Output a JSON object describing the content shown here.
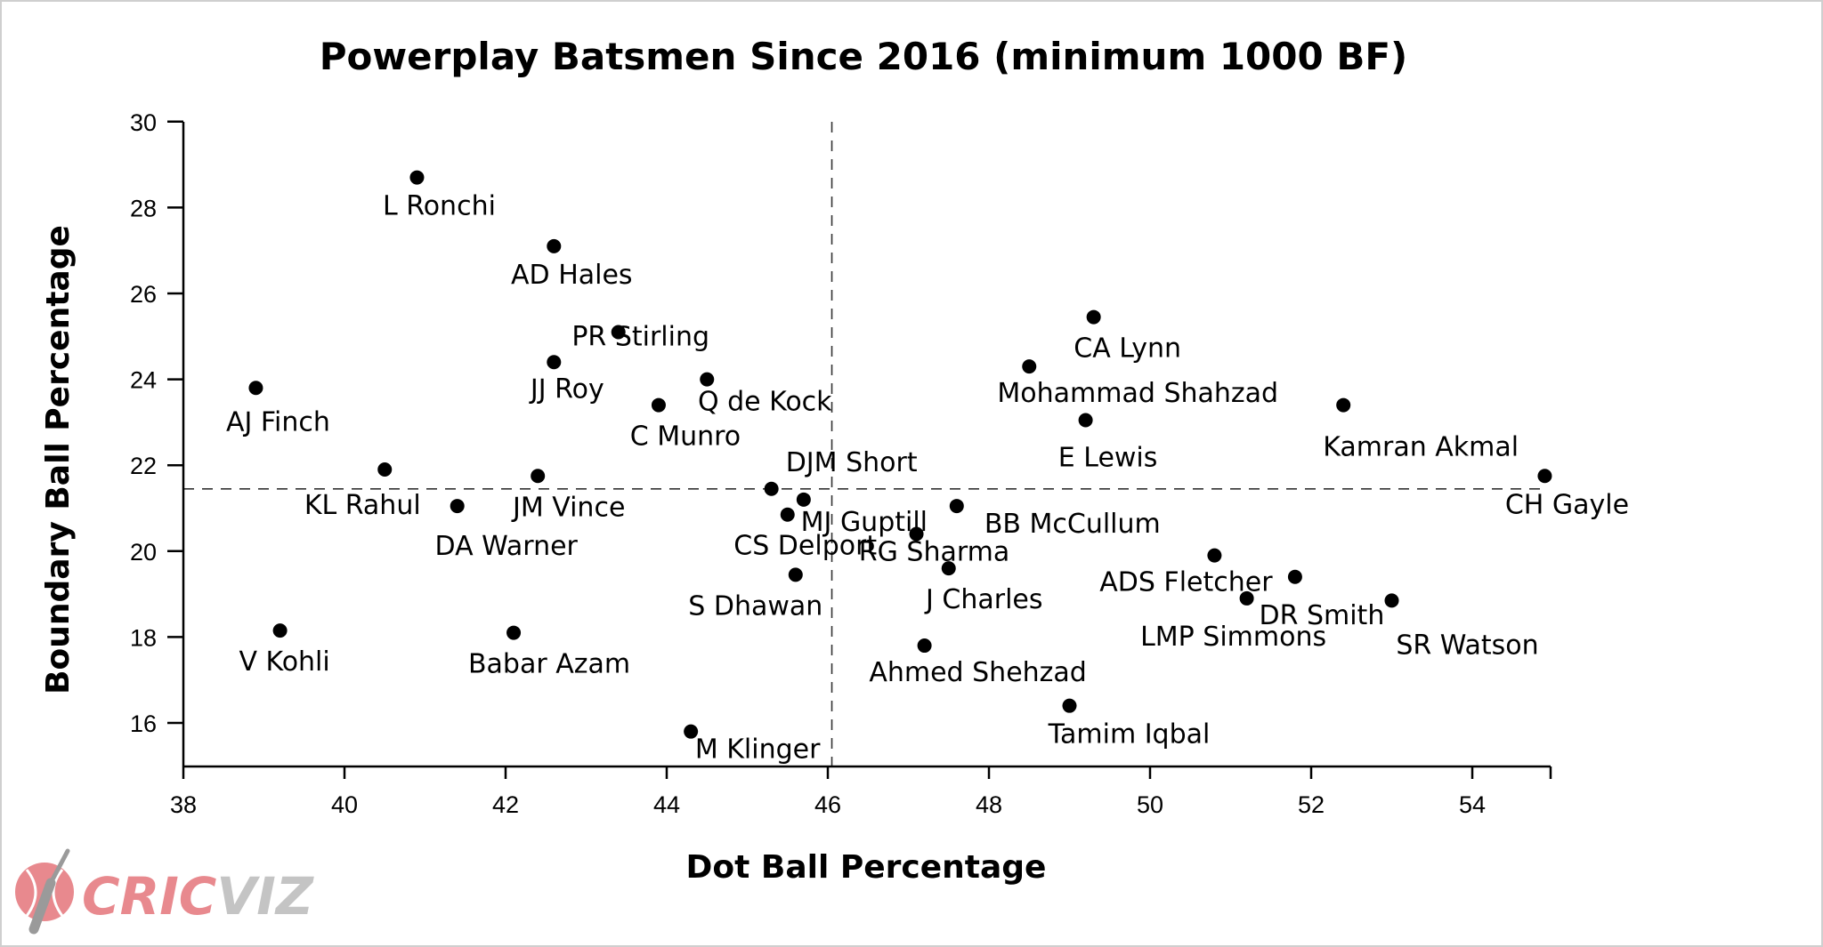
{
  "chart_data": {
    "type": "scatter",
    "title": "Powerplay Batsmen Since 2016 (minimum 1000 BF)",
    "xlabel": "Dot Ball Percentage",
    "ylabel": "Boundary Ball Percentage",
    "xlim": [
      38,
      55
    ],
    "ylim": [
      15,
      30
    ],
    "x_ticks": [
      38,
      40,
      42,
      44,
      46,
      48,
      50,
      52,
      54
    ],
    "y_ticks": [
      16,
      18,
      20,
      22,
      24,
      26,
      28,
      30
    ],
    "reference_lines": {
      "x": 46.05,
      "y": 21.45,
      "style": "dashed"
    },
    "points": [
      {
        "name": "L Ronchi",
        "x": 40.9,
        "y": 28.7
      },
      {
        "name": "AD Hales",
        "x": 42.6,
        "y": 27.1
      },
      {
        "name": "PR Stirling",
        "x": 43.4,
        "y": 25.1
      },
      {
        "name": "JJ Roy",
        "x": 42.6,
        "y": 24.4
      },
      {
        "name": "Q de Kock",
        "x": 44.5,
        "y": 24.0
      },
      {
        "name": "AJ Finch",
        "x": 38.9,
        "y": 23.8
      },
      {
        "name": "C Munro",
        "x": 43.9,
        "y": 23.4
      },
      {
        "name": "DJM Short",
        "x": 45.3,
        "y": 21.45
      },
      {
        "name": "KL Rahul",
        "x": 40.5,
        "y": 21.9
      },
      {
        "name": "JM Vince",
        "x": 42.4,
        "y": 21.75
      },
      {
        "name": "DA Warner",
        "x": 41.4,
        "y": 21.05
      },
      {
        "name": "MJ Guptill",
        "x": 45.7,
        "y": 21.2
      },
      {
        "name": "CS Delport",
        "x": 45.5,
        "y": 20.85
      },
      {
        "name": "BB McCullum",
        "x": 47.6,
        "y": 21.05
      },
      {
        "name": "RG Sharma",
        "x": 47.1,
        "y": 20.4
      },
      {
        "name": "J Charles",
        "x": 47.5,
        "y": 19.6
      },
      {
        "name": "S Dhawan",
        "x": 45.6,
        "y": 19.45
      },
      {
        "name": "V Kohli",
        "x": 39.2,
        "y": 18.15
      },
      {
        "name": "Babar Azam",
        "x": 42.1,
        "y": 18.1
      },
      {
        "name": "Ahmed Shehzad",
        "x": 47.2,
        "y": 17.8
      },
      {
        "name": "M Klinger",
        "x": 44.3,
        "y": 15.8
      },
      {
        "name": "Tamim Iqbal",
        "x": 49.0,
        "y": 16.4
      },
      {
        "name": "CA Lynn",
        "x": 49.3,
        "y": 25.45
      },
      {
        "name": "Mohammad Shahzad",
        "x": 48.5,
        "y": 24.3
      },
      {
        "name": "E Lewis",
        "x": 49.2,
        "y": 23.05
      },
      {
        "name": "Kamran Akmal",
        "x": 52.4,
        "y": 23.4
      },
      {
        "name": "CH Gayle",
        "x": 54.9,
        "y": 21.75
      },
      {
        "name": "ADS Fletcher",
        "x": 50.8,
        "y": 19.9
      },
      {
        "name": "DR Smith",
        "x": 51.8,
        "y": 19.4
      },
      {
        "name": "LMP Simmons",
        "x": 51.2,
        "y": 18.9
      },
      {
        "name": "SR Watson",
        "x": 53.0,
        "y": 18.85
      }
    ]
  },
  "logo": {
    "text_primary": "CRIC",
    "text_secondary": "VIZ",
    "color_primary": "#e8898e",
    "color_secondary": "#c4c4c4"
  },
  "colors": {
    "point": "#000000",
    "axis": "#000000",
    "reference_line": "#333333"
  }
}
